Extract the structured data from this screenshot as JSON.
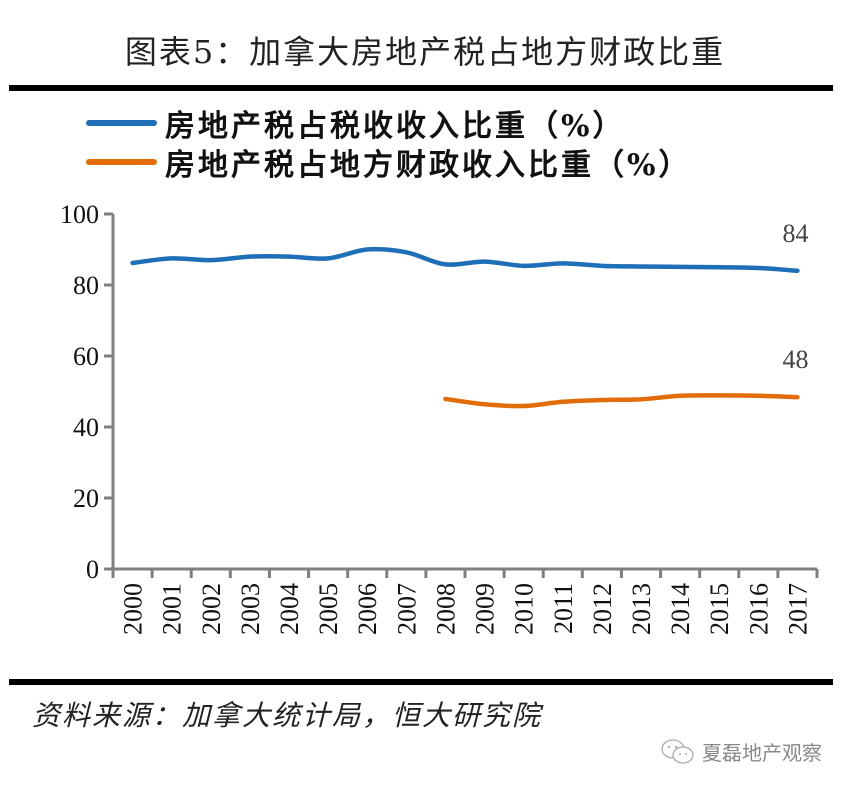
{
  "header": {
    "title": "图表5：加拿大房地产税占地方财政比重"
  },
  "footer": {
    "source": "资料来源：加拿大统计局，恒大研究院",
    "watermark": "夏磊地产观察",
    "watermark_icon": "wechat-icon"
  },
  "chart_data": {
    "type": "line",
    "title": "图表5：加拿大房地产税占地方财政比重",
    "xlabel": "",
    "ylabel": "",
    "x": [
      "2000",
      "2001",
      "2002",
      "2003",
      "2004",
      "2005",
      "2006",
      "2007",
      "2008",
      "2009",
      "2010",
      "2011",
      "2012",
      "2013",
      "2014",
      "2015",
      "2016",
      "2017"
    ],
    "ylim": [
      0,
      100
    ],
    "yticks": [
      "0",
      "20",
      "40",
      "60",
      "80",
      "100"
    ],
    "grid": false,
    "legend_position": "top-left",
    "series": [
      {
        "name": "房地产税占税收收入比重（%）",
        "color": "#1F6FB8",
        "values": [
          86.2,
          87.5,
          87.0,
          88.0,
          88.0,
          87.5,
          90.0,
          89.2,
          85.8,
          86.6,
          85.4,
          86.1,
          85.4,
          85.2,
          85.1,
          85.0,
          84.8,
          84.0
        ],
        "end_label": "84"
      },
      {
        "name": "房地产税占地方财政收入比重（%）",
        "color": "#E36C0A",
        "values": [
          null,
          null,
          null,
          null,
          null,
          null,
          null,
          null,
          47.9,
          46.4,
          45.9,
          47.1,
          47.6,
          47.8,
          48.8,
          48.9,
          48.8,
          48.4
        ],
        "end_label": "48"
      }
    ]
  }
}
